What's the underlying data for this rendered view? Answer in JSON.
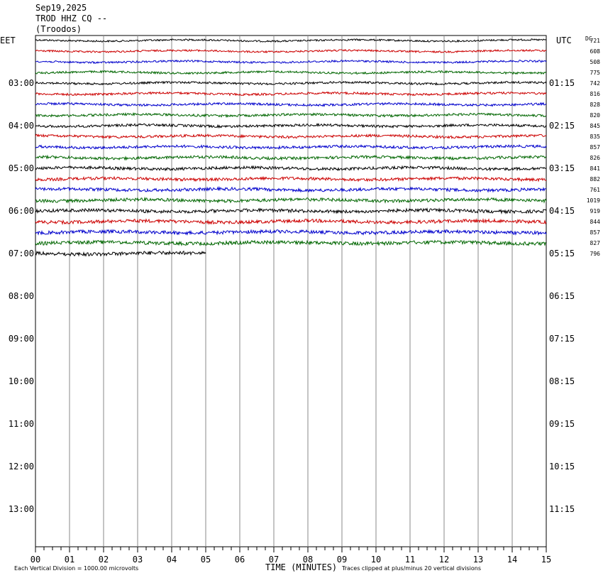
{
  "header": {
    "date": "Sep19,2025",
    "station": "TROD HHZ CQ --",
    "location": "(Troodos)"
  },
  "labels": {
    "left_tz": "EET",
    "right_tz": "UTC",
    "dc_label": "DC",
    "xaxis_title": "TIME (MINUTES)",
    "scale_note": "Each Vertical Division = 1000.00 microvolts",
    "clip_note": "Traces clipped at plus/minus 20 vertical divisions"
  },
  "colors": {
    "cycle": [
      "#000000",
      "#cc0000",
      "#0000cc",
      "#006600"
    ]
  },
  "chart_data": {
    "type": "line",
    "x_ticks": [
      "00",
      "01",
      "02",
      "03",
      "04",
      "05",
      "06",
      "07",
      "08",
      "09",
      "10",
      "11",
      "12",
      "13",
      "14",
      "15"
    ],
    "xlim": [
      0,
      15
    ],
    "left_hours": [
      "03:00",
      "04:00",
      "05:00",
      "06:00",
      "07:00",
      "08:00",
      "09:00",
      "10:00",
      "11:00",
      "12:00",
      "13:00"
    ],
    "right_hours": [
      "01:15",
      "02:15",
      "03:15",
      "04:15",
      "05:15",
      "06:15",
      "07:15",
      "08:15",
      "09:15",
      "10:15",
      "11:15"
    ],
    "traces": [
      {
        "dc": "721",
        "minutes": 15
      },
      {
        "dc": "608",
        "minutes": 15
      },
      {
        "dc": "508",
        "minutes": 15
      },
      {
        "dc": "775",
        "minutes": 15
      },
      {
        "dc": "742",
        "minutes": 15
      },
      {
        "dc": "816",
        "minutes": 15
      },
      {
        "dc": "828",
        "minutes": 15
      },
      {
        "dc": "820",
        "minutes": 15
      },
      {
        "dc": "845",
        "minutes": 15
      },
      {
        "dc": "835",
        "minutes": 15
      },
      {
        "dc": "857",
        "minutes": 15
      },
      {
        "dc": "826",
        "minutes": 15
      },
      {
        "dc": "841",
        "minutes": 15
      },
      {
        "dc": "882",
        "minutes": 15
      },
      {
        "dc": "761",
        "minutes": 15
      },
      {
        "dc": "1019",
        "minutes": 15
      },
      {
        "dc": "919",
        "minutes": 15
      },
      {
        "dc": "844",
        "minutes": 15
      },
      {
        "dc": "857",
        "minutes": 15
      },
      {
        "dc": "827",
        "minutes": 15
      },
      {
        "dc": "796",
        "minutes": 5
      }
    ]
  }
}
